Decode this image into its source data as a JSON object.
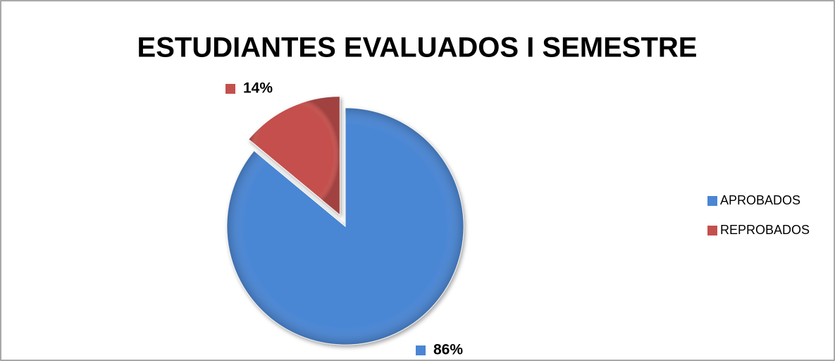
{
  "chart_data": {
    "type": "pie",
    "title": "ESTUDIANTES EVALUADOS I SEMESTRE",
    "categories": [
      "APROBADOS",
      "REPROBADOS"
    ],
    "values": [
      86,
      14
    ],
    "value_labels": [
      "86%",
      "14%"
    ],
    "colors": [
      "#4a86d4",
      "#c4504d"
    ],
    "legend": "right"
  }
}
